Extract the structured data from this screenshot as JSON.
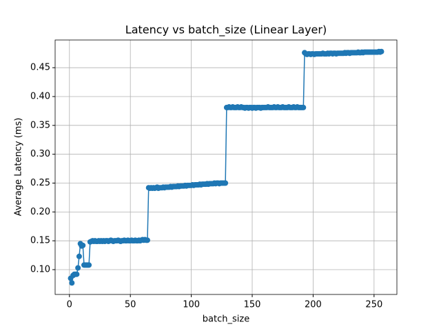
{
  "chart_data": {
    "type": "line",
    "title": "Latency vs batch_size (Linear Layer)",
    "x_label": "batch_size",
    "y_label": "Average Latency (ms)",
    "xlim": [
      -11.75,
      268.75
    ],
    "ylim": [
      0.057,
      0.498
    ],
    "xticks": [
      0,
      50,
      100,
      150,
      200,
      250
    ],
    "yticks": [
      {
        "value": 0.1,
        "label": "0.10"
      },
      0.15,
      {
        "value": 0.2,
        "label": "0.20"
      },
      0.25,
      {
        "value": 0.3,
        "label": "0.30"
      },
      0.35,
      {
        "value": 0.4,
        "label": "0.40"
      },
      0.45
    ],
    "grid": true,
    "x": [
      1,
      2,
      3,
      4,
      5,
      6,
      7,
      8,
      9,
      10,
      11,
      12,
      13,
      14,
      15,
      16,
      17,
      18,
      19,
      20,
      21,
      22,
      23,
      24,
      25,
      26,
      27,
      28,
      29,
      30,
      31,
      32,
      33,
      34,
      35,
      36,
      37,
      38,
      39,
      40,
      41,
      42,
      43,
      44,
      45,
      46,
      47,
      48,
      49,
      50,
      51,
      52,
      53,
      54,
      55,
      56,
      57,
      58,
      59,
      60,
      61,
      62,
      63,
      64,
      65,
      66,
      67,
      68,
      69,
      70,
      71,
      72,
      73,
      74,
      75,
      76,
      77,
      78,
      79,
      80,
      81,
      82,
      83,
      84,
      85,
      86,
      87,
      88,
      89,
      90,
      91,
      92,
      93,
      94,
      95,
      96,
      97,
      98,
      99,
      100,
      101,
      102,
      103,
      104,
      105,
      106,
      107,
      108,
      109,
      110,
      111,
      112,
      113,
      114,
      115,
      116,
      117,
      118,
      119,
      120,
      121,
      122,
      123,
      124,
      125,
      126,
      127,
      128,
      129,
      130,
      131,
      132,
      133,
      134,
      135,
      136,
      137,
      138,
      139,
      140,
      141,
      142,
      143,
      144,
      145,
      146,
      147,
      148,
      149,
      150,
      151,
      152,
      153,
      154,
      155,
      156,
      157,
      158,
      159,
      160,
      161,
      162,
      163,
      164,
      165,
      166,
      167,
      168,
      169,
      170,
      171,
      172,
      173,
      174,
      175,
      176,
      177,
      178,
      179,
      180,
      181,
      182,
      183,
      184,
      185,
      186,
      187,
      188,
      189,
      190,
      191,
      192,
      193,
      194,
      195,
      196,
      197,
      198,
      199,
      200,
      201,
      202,
      203,
      204,
      205,
      206,
      207,
      208,
      209,
      210,
      211,
      212,
      213,
      214,
      215,
      216,
      217,
      218,
      219,
      220,
      221,
      222,
      223,
      224,
      225,
      226,
      227,
      228,
      229,
      230,
      231,
      232,
      233,
      234,
      235,
      236,
      237,
      238,
      239,
      240,
      241,
      242,
      243,
      244,
      245,
      246,
      247,
      248,
      249,
      250,
      251,
      252,
      253,
      254,
      255,
      256
    ],
    "series": [
      {
        "color": "#1f77b4",
        "values": [
          0.085,
          0.077,
          0.09,
          0.092,
          0.092,
          0.092,
          0.103,
          0.123,
          0.145,
          0.141,
          0.142,
          0.108,
          0.108,
          0.108,
          0.108,
          0.108,
          0.148,
          0.149,
          0.15,
          0.149,
          0.15,
          0.149,
          0.149,
          0.15,
          0.149,
          0.15,
          0.149,
          0.15,
          0.149,
          0.15,
          0.15,
          0.149,
          0.15,
          0.151,
          0.15,
          0.149,
          0.15,
          0.15,
          0.15,
          0.151,
          0.15,
          0.149,
          0.15,
          0.15,
          0.151,
          0.15,
          0.15,
          0.151,
          0.15,
          0.15,
          0.151,
          0.15,
          0.15,
          0.151,
          0.15,
          0.15,
          0.151,
          0.15,
          0.151,
          0.152,
          0.151,
          0.152,
          0.151,
          0.151,
          0.242,
          0.241,
          0.242,
          0.241,
          0.242,
          0.241,
          0.242,
          0.243,
          0.241,
          0.242,
          0.242,
          0.242,
          0.243,
          0.242,
          0.243,
          0.243,
          0.243,
          0.243,
          0.244,
          0.243,
          0.244,
          0.244,
          0.244,
          0.244,
          0.245,
          0.244,
          0.245,
          0.245,
          0.245,
          0.245,
          0.246,
          0.245,
          0.246,
          0.246,
          0.246,
          0.246,
          0.247,
          0.246,
          0.247,
          0.247,
          0.247,
          0.247,
          0.248,
          0.247,
          0.248,
          0.248,
          0.248,
          0.248,
          0.249,
          0.248,
          0.249,
          0.249,
          0.249,
          0.249,
          0.25,
          0.249,
          0.25,
          0.25,
          0.249,
          0.25,
          0.25,
          0.25,
          0.25,
          0.25,
          0.381,
          0.381,
          0.382,
          0.381,
          0.381,
          0.382,
          0.381,
          0.381,
          0.381,
          0.382,
          0.381,
          0.381,
          0.382,
          0.381,
          0.381,
          0.38,
          0.381,
          0.381,
          0.38,
          0.381,
          0.381,
          0.38,
          0.381,
          0.381,
          0.38,
          0.381,
          0.381,
          0.381,
          0.38,
          0.381,
          0.381,
          0.381,
          0.381,
          0.381,
          0.382,
          0.381,
          0.381,
          0.381,
          0.381,
          0.382,
          0.381,
          0.381,
          0.382,
          0.381,
          0.381,
          0.381,
          0.382,
          0.381,
          0.381,
          0.381,
          0.381,
          0.382,
          0.381,
          0.381,
          0.381,
          0.382,
          0.381,
          0.381,
          0.382,
          0.381,
          0.381,
          0.381,
          0.381,
          0.381,
          0.476,
          0.474,
          0.473,
          0.474,
          0.474,
          0.473,
          0.474,
          0.474,
          0.473,
          0.474,
          0.474,
          0.474,
          0.474,
          0.474,
          0.474,
          0.475,
          0.474,
          0.474,
          0.474,
          0.475,
          0.474,
          0.475,
          0.475,
          0.474,
          0.475,
          0.475,
          0.474,
          0.475,
          0.475,
          0.475,
          0.475,
          0.475,
          0.475,
          0.476,
          0.475,
          0.476,
          0.476,
          0.475,
          0.476,
          0.476,
          0.476,
          0.476,
          0.476,
          0.476,
          0.477,
          0.476,
          0.476,
          0.477,
          0.476,
          0.477,
          0.477,
          0.477,
          0.477,
          0.477,
          0.477,
          0.477,
          0.477,
          0.477,
          0.477,
          0.477,
          0.477,
          0.478,
          0.477,
          0.478
        ]
      }
    ]
  }
}
